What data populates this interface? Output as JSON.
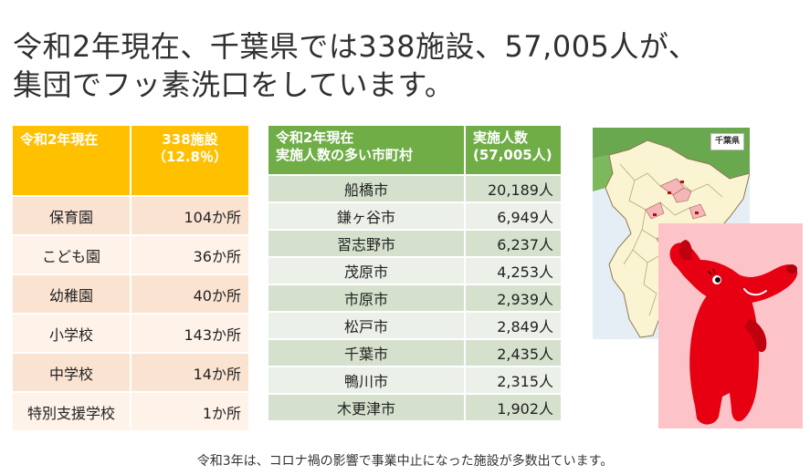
{
  "headline": {
    "line1": "令和2年現在、千葉県では338施設、57,005人が、",
    "line2": "集団でフッ素洗口をしています。"
  },
  "facility_table": {
    "header_col1": "令和2年現在",
    "header_col2_line1": "338施設",
    "header_col2_line2": "（12.8％）",
    "rows": [
      {
        "name": "保育園",
        "value": "104か所"
      },
      {
        "name": "こども園",
        "value": "36か所"
      },
      {
        "name": "幼稚園",
        "value": "40か所"
      },
      {
        "name": "小学校",
        "value": "143か所"
      },
      {
        "name": "中学校",
        "value": "14か所"
      },
      {
        "name": "特別支援学校",
        "value": "1か所"
      }
    ]
  },
  "city_table": {
    "header_col1_line1": "令和2年現在",
    "header_col1_line2": "実施人数の多い市町村",
    "header_col2_line1": "実施人数",
    "header_col2_line2": "(57,005人)",
    "rows": [
      {
        "name": "船橋市",
        "value": "20,189人"
      },
      {
        "name": "鎌ヶ谷市",
        "value": "6,949人"
      },
      {
        "name": "習志野市",
        "value": "6,237人"
      },
      {
        "name": "茂原市",
        "value": "4,253人"
      },
      {
        "name": "市原市",
        "value": "2,939人"
      },
      {
        "name": "松戸市",
        "value": "2,849人"
      },
      {
        "name": "千葉市",
        "value": "2,435人"
      },
      {
        "name": "鴨川市",
        "value": "2,315人"
      },
      {
        "name": "木更津市",
        "value": "1,902人"
      }
    ]
  },
  "map": {
    "badge": "千葉県"
  },
  "footnote": "令和3年は、コロナ禍の影響で事業中止になった施設が多数出ています。",
  "colors": {
    "orange_header": "#ffc000",
    "green_header": "#70ad47",
    "mascot_red": "#e60012",
    "mascot_bg": "#fcc4c8"
  }
}
